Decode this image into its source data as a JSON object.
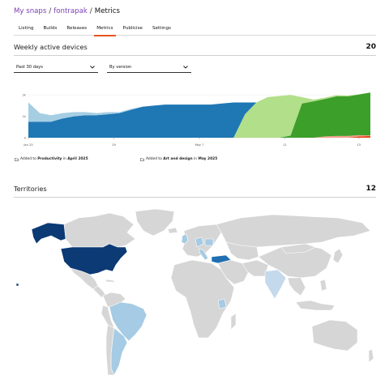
{
  "breadcrumb": {
    "root": "My snaps",
    "snap": "fontrapak",
    "current": "Metrics"
  },
  "tabs": [
    {
      "label": "Listing",
      "active": false
    },
    {
      "label": "Builds",
      "active": false
    },
    {
      "label": "Releases",
      "active": false
    },
    {
      "label": "Metrics",
      "active": true
    },
    {
      "label": "Publicise",
      "active": false
    },
    {
      "label": "Settings",
      "active": false
    }
  ],
  "weekly": {
    "title": "Weekly active devices",
    "count": "20",
    "period_select": "Past 30 days",
    "group_select": "By version"
  },
  "chart_data": {
    "type": "area",
    "title": "",
    "xlabel": "",
    "ylabel": "",
    "y_ticks": [
      "2k",
      "1k",
      "0"
    ],
    "x_ticks": [
      "Jan 25",
      "29",
      "May 7",
      "11",
      "15"
    ],
    "ylim": [
      0,
      2500
    ],
    "x": [
      0,
      2,
      4,
      6,
      8,
      10,
      12,
      14,
      16,
      18,
      20,
      22,
      24,
      26,
      28,
      30,
      32,
      34,
      36,
      38,
      40,
      42,
      44,
      46,
      48,
      50,
      52,
      54,
      56,
      58,
      60
    ],
    "series": [
      {
        "color": "#e8431c",
        "values": [
          0,
          0,
          0,
          0,
          0,
          0,
          0,
          0,
          0,
          0,
          0,
          0,
          0,
          0,
          0,
          0,
          0,
          0,
          0,
          0,
          0,
          0,
          0,
          0,
          0,
          0,
          0,
          0,
          0,
          60,
          80
        ]
      },
      {
        "color": "#f2a08a",
        "values": [
          0,
          0,
          0,
          0,
          0,
          0,
          0,
          0,
          0,
          0,
          0,
          0,
          0,
          0,
          0,
          0,
          0,
          0,
          0,
          0,
          0,
          0,
          0,
          0,
          0,
          0,
          60,
          80,
          80,
          60,
          30
        ]
      },
      {
        "color": "#3c9f2a",
        "values": [
          0,
          0,
          0,
          0,
          0,
          0,
          0,
          0,
          0,
          0,
          0,
          0,
          0,
          0,
          0,
          0,
          0,
          0,
          0,
          0,
          0,
          0,
          0,
          100,
          1600,
          1700,
          1750,
          1850,
          1850,
          1900,
          2000
        ]
      },
      {
        "color": "#b2df8a",
        "values": [
          0,
          0,
          0,
          0,
          0,
          0,
          0,
          0,
          0,
          0,
          0,
          0,
          0,
          0,
          0,
          0,
          0,
          0,
          0,
          1100,
          1650,
          1900,
          1950,
          1900,
          300,
          80,
          60,
          60,
          40,
          0,
          0
        ]
      },
      {
        "color": "#1f77b4",
        "values": [
          750,
          750,
          750,
          900,
          1000,
          1050,
          1050,
          1100,
          1150,
          1300,
          1450,
          1500,
          1550,
          1550,
          1550,
          1550,
          1550,
          1600,
          1650,
          550,
          0,
          0,
          0,
          0,
          0,
          0,
          0,
          0,
          0,
          0,
          0
        ]
      },
      {
        "color": "#a6cee3",
        "values": [
          900,
          400,
          300,
          250,
          200,
          150,
          100,
          100,
          50,
          50,
          0,
          0,
          0,
          0,
          0,
          0,
          0,
          0,
          0,
          0,
          0,
          0,
          0,
          0,
          0,
          0,
          0,
          0,
          0,
          0,
          0
        ]
      }
    ]
  },
  "annotations": [
    {
      "prefix": "Added to ",
      "category": "Productivity",
      "mid": " in ",
      "date": "April 2025"
    },
    {
      "prefix": "Added to ",
      "category": "Art and design",
      "mid": " in ",
      "date": "May 2025"
    }
  ],
  "territories": {
    "title": "Territories",
    "count": "12",
    "colors": {
      "none": "#d6d6d6",
      "low": "#a6cbe4",
      "high": "#0b3a75",
      "border": "#ffffff"
    }
  }
}
